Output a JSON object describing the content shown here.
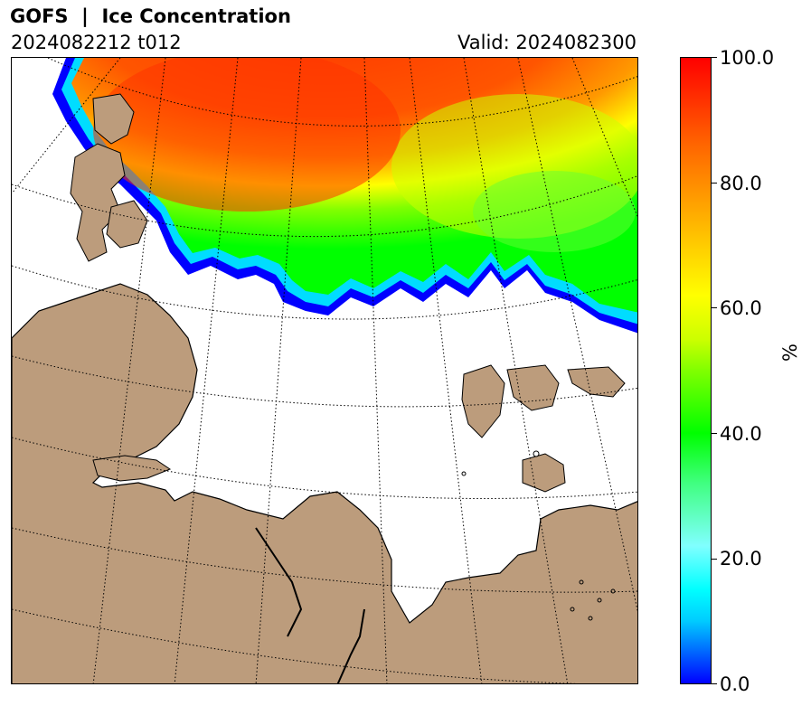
{
  "header": {
    "title": "GOFS  |  Ice Concentration",
    "init_label": "2024082212 t012",
    "valid_label": "Valid: 2024082300"
  },
  "colorbar": {
    "unit": "%",
    "min": 0,
    "max": 100,
    "ticks": [
      "0.0",
      "20.0",
      "40.0",
      "60.0",
      "80.0",
      "100.0"
    ]
  },
  "colors": {
    "land": "#bc9c7c",
    "ocean": "#ffffff",
    "ice_high": "#ff3300",
    "ice_mid": "#ffff00",
    "ice_low": "#00ff00",
    "ice_edge": "#0000ff"
  },
  "map": {
    "projection": "polar stereographic",
    "region": "Barents / Kara Sea",
    "graticule": "dotted"
  }
}
